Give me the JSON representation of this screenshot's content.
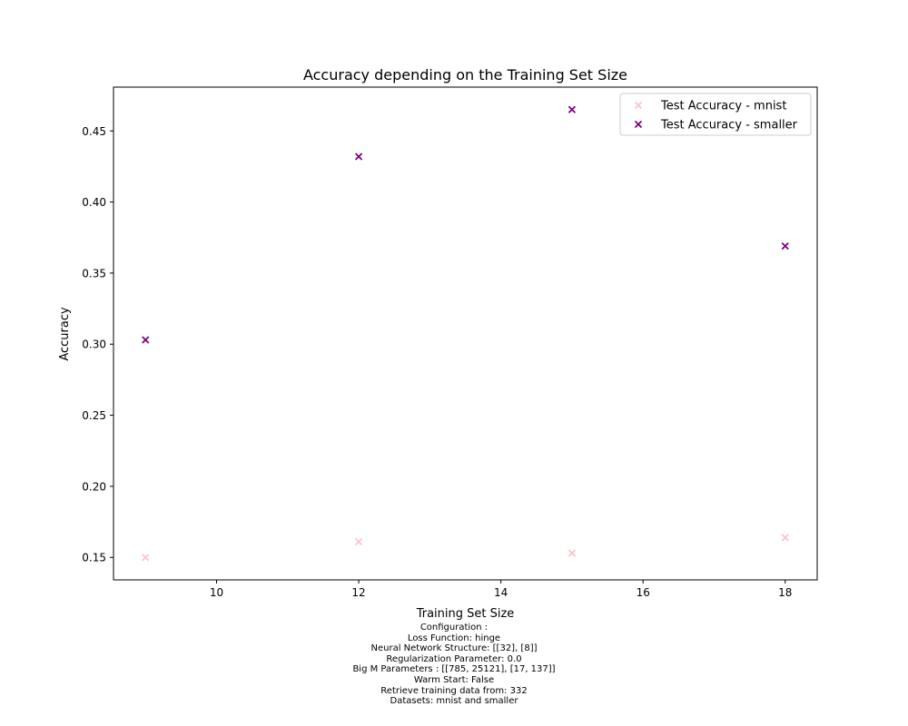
{
  "chart_data": {
    "type": "scatter",
    "title": "Accuracy depending on the Training Set Size",
    "xlabel": "Training Set Size",
    "ylabel": "Accuracy",
    "xlim": [
      8.55,
      18.45
    ],
    "ylim": [
      0.1342,
      0.4808
    ],
    "xticks": [
      10,
      12,
      14,
      16,
      18
    ],
    "xtick_labels": [
      "10",
      "12",
      "14",
      "16",
      "18"
    ],
    "yticks": [
      0.15,
      0.2,
      0.25,
      0.3,
      0.35,
      0.4,
      0.45
    ],
    "ytick_labels": [
      "0.15",
      "0.20",
      "0.25",
      "0.30",
      "0.35",
      "0.40",
      "0.45"
    ],
    "grid": false,
    "legend_position": "top-right",
    "marker": "x",
    "series": [
      {
        "name": "Test Accuracy - mnist",
        "color": "#ffc0cb",
        "x": [
          9,
          12,
          15,
          18
        ],
        "y": [
          0.15,
          0.161,
          0.153,
          0.164
        ]
      },
      {
        "name": "Test Accuracy - smaller",
        "color": "#800080",
        "x": [
          9,
          12,
          15,
          18
        ],
        "y": [
          0.303,
          0.432,
          0.465,
          0.369
        ]
      }
    ]
  },
  "caption": {
    "lines": [
      "Configuration :",
      "Loss Function: hinge",
      "Neural Network Structure: [[32], [8]]",
      "Regularization Parameter: 0.0",
      "Big M Parameters : [[785, 25121], [17, 137]]",
      "Warm Start: False",
      "Retrieve training data from: 332",
      "Datasets: mnist and smaller"
    ]
  }
}
